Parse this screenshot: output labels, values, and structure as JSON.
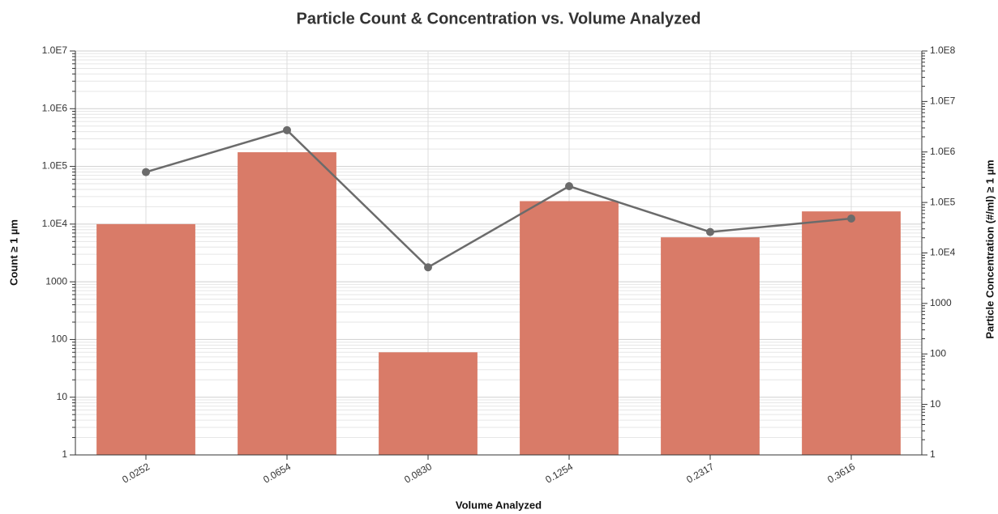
{
  "chart_data": {
    "type": "bar",
    "title": "Particle Count & Concentration vs. Volume Analyzed",
    "x_label": "Volume Analyzed",
    "y_label": "Count ≥ 1 µm",
    "y2_label": "Particle Concentration (#/ml) ≥ 1 µm",
    "categories": [
      "0.0252",
      "0.0654",
      "0.0830",
      "0.1254",
      "0.2317",
      "0.3616"
    ],
    "series": [
      {
        "name": "Count ≥ 1 µm",
        "type": "bar",
        "color": "#d97b68",
        "values": [
          10000,
          176000,
          60,
          25000,
          5900,
          16600
        ]
      },
      {
        "name": "Particle Concentration (#/ml) ≥ 1 µm",
        "type": "line",
        "axis": "y2",
        "color": "#6b6b6b",
        "values": [
          400000,
          2700000,
          5200,
          210000,
          26000,
          48000
        ]
      }
    ],
    "ylim": [
      1,
      10000000
    ],
    "yticks": [
      1,
      10,
      100,
      1000,
      {
        "value": 10000,
        "label": "1.0E4"
      },
      {
        "value": 100000,
        "label": "1.0E5"
      },
      {
        "value": 1000000,
        "label": "1.0E6"
      },
      {
        "value": 10000000,
        "label": "1.0E7"
      }
    ],
    "y2lim": [
      1,
      100000000
    ],
    "y2ticks": [
      1,
      10,
      100,
      1000,
      {
        "value": 10000,
        "label": "1.0E4"
      },
      {
        "value": 100000,
        "label": "1.0E5"
      },
      {
        "value": 1000000,
        "label": "1.0E6"
      },
      {
        "value": 10000000,
        "label": "1.0E7"
      },
      {
        "value": 100000000,
        "label": "1.0E8"
      }
    ],
    "log_scale": true,
    "grid": true,
    "minor_grid": true
  }
}
